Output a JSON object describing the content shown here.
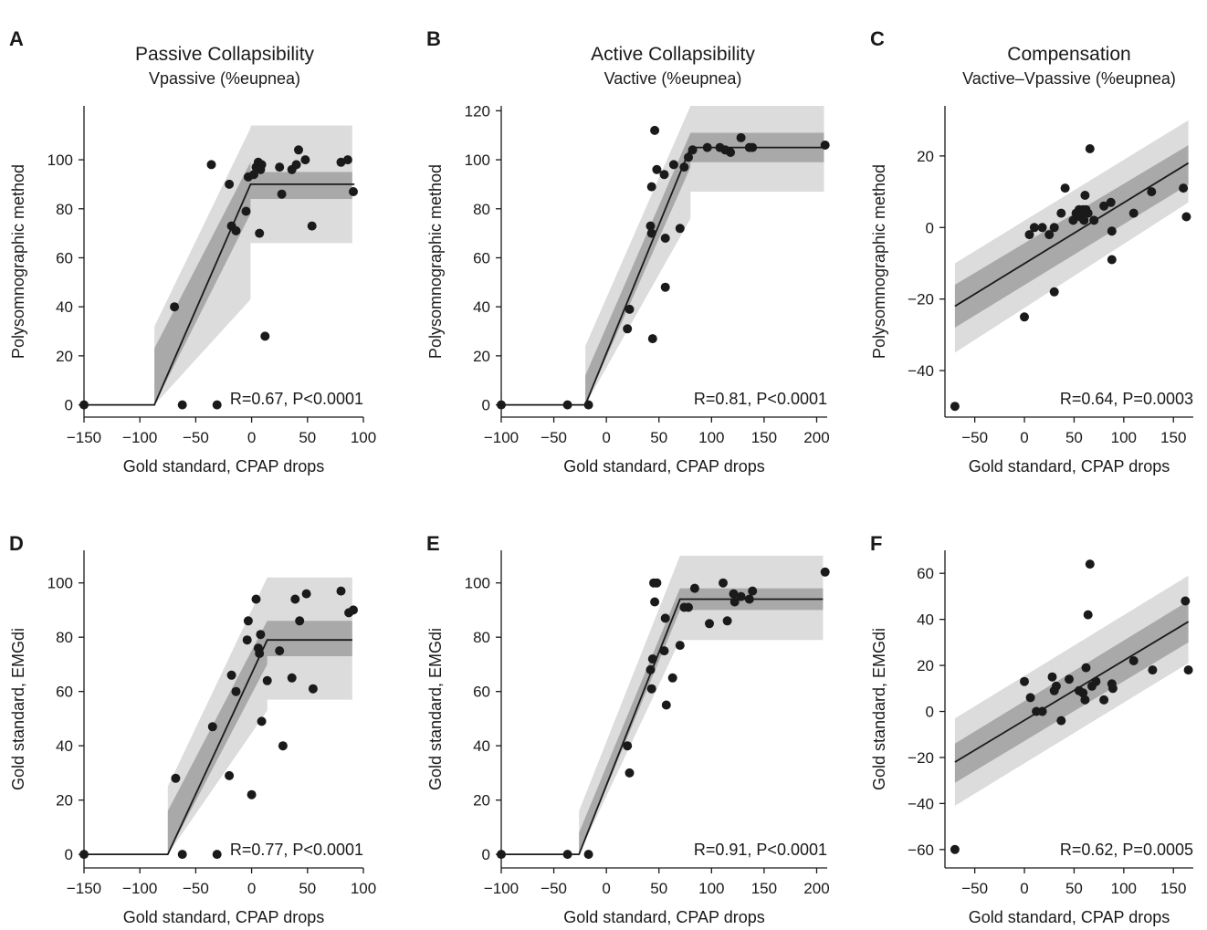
{
  "figure": {
    "columns": [
      {
        "title": "Passive Collapsibility",
        "subtitle": "Vpassive (%eupnea)"
      },
      {
        "title": "Active Collapsibility",
        "subtitle": "Vactive (%eupnea)"
      },
      {
        "title": "Compensation",
        "subtitle": "Vactive–Vpassive (%eupnea)"
      }
    ],
    "colors": {
      "outer_band": "#dcdcdc",
      "inner_band": "#a9a9a9",
      "line": "#1a1a1a",
      "points": "#1a1a1a",
      "axes": "#1a1a1a"
    }
  },
  "chart_data": [
    {
      "panel": "A",
      "type": "scatter",
      "xlabel": "Gold standard, CPAP drops",
      "ylabel": "Polysomnographic method",
      "annotation": "R=0.67, P<0.0001",
      "xlim": [
        -150,
        100
      ],
      "ylim": [
        -5,
        122
      ],
      "xticks": [
        -150,
        -100,
        -50,
        0,
        50,
        100
      ],
      "yticks": [
        0,
        20,
        40,
        60,
        80,
        100
      ],
      "fit": {
        "kind": "piecewise",
        "x": [
          -150,
          -87,
          -1,
          92
        ],
        "y": [
          0,
          0,
          90,
          90
        ]
      },
      "outer_band": {
        "x": [
          -87,
          -1,
          -1,
          90
        ],
        "upper": [
          32,
          113,
          114,
          114
        ],
        "lower": [
          0,
          43,
          66,
          66
        ]
      },
      "inner_band": {
        "x": [
          -87,
          -1,
          -1,
          90
        ],
        "upper": [
          23,
          99,
          95,
          95
        ],
        "lower": [
          0,
          78,
          84,
          84
        ]
      },
      "points": [
        {
          "x": -150,
          "y": 0
        },
        {
          "x": -62,
          "y": 0
        },
        {
          "x": -31,
          "y": 0
        },
        {
          "x": -69,
          "y": 40
        },
        {
          "x": -36,
          "y": 98
        },
        {
          "x": -20,
          "y": 90
        },
        {
          "x": -18,
          "y": 73
        },
        {
          "x": -14,
          "y": 71
        },
        {
          "x": -5,
          "y": 79
        },
        {
          "x": -3,
          "y": 93
        },
        {
          "x": 2,
          "y": 94
        },
        {
          "x": 4,
          "y": 97
        },
        {
          "x": 6,
          "y": 99
        },
        {
          "x": 8,
          "y": 96
        },
        {
          "x": 9,
          "y": 98
        },
        {
          "x": 7,
          "y": 70
        },
        {
          "x": 12,
          "y": 28
        },
        {
          "x": 25,
          "y": 97
        },
        {
          "x": 27,
          "y": 86
        },
        {
          "x": 36,
          "y": 96
        },
        {
          "x": 40,
          "y": 98
        },
        {
          "x": 42,
          "y": 104
        },
        {
          "x": 48,
          "y": 100
        },
        {
          "x": 54,
          "y": 73
        },
        {
          "x": 80,
          "y": 99
        },
        {
          "x": 86,
          "y": 100
        },
        {
          "x": 91,
          "y": 87
        }
      ]
    },
    {
      "panel": "B",
      "type": "scatter",
      "xlabel": "Gold standard, CPAP drops",
      "ylabel": "Polysomnographic method",
      "annotation": "R=0.81, P<0.0001",
      "xlim": [
        -100,
        210
      ],
      "ylim": [
        -5,
        122
      ],
      "xticks": [
        -100,
        -50,
        0,
        50,
        100,
        150,
        200
      ],
      "yticks": [
        0,
        20,
        40,
        60,
        80,
        100,
        120
      ],
      "fit": {
        "kind": "piecewise",
        "x": [
          -100,
          -20,
          80,
          207
        ],
        "y": [
          0,
          0,
          105,
          105
        ]
      },
      "outer_band": {
        "x": [
          -20,
          80,
          80,
          207
        ],
        "upper": [
          24,
          122,
          122,
          122
        ],
        "lower": [
          0,
          76,
          87,
          87
        ]
      },
      "inner_band": {
        "x": [
          -20,
          80,
          80,
          207
        ],
        "upper": [
          12,
          111,
          111,
          111
        ],
        "lower": [
          0,
          97,
          99,
          99
        ]
      },
      "points": [
        {
          "x": -100,
          "y": 0
        },
        {
          "x": -37,
          "y": 0
        },
        {
          "x": -17,
          "y": 0
        },
        {
          "x": 20,
          "y": 31
        },
        {
          "x": 22,
          "y": 39
        },
        {
          "x": 42,
          "y": 73
        },
        {
          "x": 43,
          "y": 70
        },
        {
          "x": 43,
          "y": 89
        },
        {
          "x": 44,
          "y": 27
        },
        {
          "x": 46,
          "y": 112
        },
        {
          "x": 48,
          "y": 96
        },
        {
          "x": 55,
          "y": 94
        },
        {
          "x": 56,
          "y": 68
        },
        {
          "x": 56,
          "y": 48
        },
        {
          "x": 64,
          "y": 98
        },
        {
          "x": 70,
          "y": 72
        },
        {
          "x": 74,
          "y": 97
        },
        {
          "x": 78,
          "y": 101
        },
        {
          "x": 82,
          "y": 104
        },
        {
          "x": 96,
          "y": 105
        },
        {
          "x": 108,
          "y": 105
        },
        {
          "x": 113,
          "y": 104
        },
        {
          "x": 118,
          "y": 103
        },
        {
          "x": 128,
          "y": 109
        },
        {
          "x": 136,
          "y": 105
        },
        {
          "x": 139,
          "y": 105
        },
        {
          "x": 208,
          "y": 106
        }
      ]
    },
    {
      "panel": "C",
      "type": "scatter",
      "xlabel": "Gold standard, CPAP drops",
      "ylabel": "Polysomnographic method",
      "annotation": "R=0.64, P=0.0003",
      "xlim": [
        -80,
        170
      ],
      "ylim": [
        -53,
        34
      ],
      "xticks": [
        -50,
        0,
        50,
        100,
        150
      ],
      "yticks": [
        -40,
        -20,
        0,
        20
      ],
      "fit": {
        "kind": "linear",
        "x": [
          -70,
          165
        ],
        "y": [
          -22,
          18
        ]
      },
      "outer_band": {
        "x": [
          -70,
          165
        ],
        "upper": [
          -10,
          30
        ],
        "lower": [
          -35,
          7
        ]
      },
      "inner_band": {
        "x": [
          -70,
          165
        ],
        "upper": [
          -16,
          23
        ],
        "lower": [
          -28,
          12
        ]
      },
      "points": [
        {
          "x": -70,
          "y": -50
        },
        {
          "x": 0,
          "y": -25
        },
        {
          "x": 5,
          "y": -2
        },
        {
          "x": 10,
          "y": 0
        },
        {
          "x": 18,
          "y": 0
        },
        {
          "x": 25,
          "y": -2
        },
        {
          "x": 30,
          "y": -18
        },
        {
          "x": 30,
          "y": 0
        },
        {
          "x": 37,
          "y": 4
        },
        {
          "x": 41,
          "y": 11
        },
        {
          "x": 49,
          "y": 2
        },
        {
          "x": 52,
          "y": 4
        },
        {
          "x": 55,
          "y": 5
        },
        {
          "x": 56,
          "y": 3
        },
        {
          "x": 59,
          "y": 5
        },
        {
          "x": 60,
          "y": 2
        },
        {
          "x": 61,
          "y": 9
        },
        {
          "x": 62,
          "y": 5
        },
        {
          "x": 64,
          "y": 4
        },
        {
          "x": 66,
          "y": 22
        },
        {
          "x": 70,
          "y": 2
        },
        {
          "x": 80,
          "y": 6
        },
        {
          "x": 87,
          "y": 7
        },
        {
          "x": 88,
          "y": -1
        },
        {
          "x": 88,
          "y": -9
        },
        {
          "x": 110,
          "y": 4
        },
        {
          "x": 128,
          "y": 10
        },
        {
          "x": 160,
          "y": 11
        },
        {
          "x": 163,
          "y": 3
        }
      ]
    },
    {
      "panel": "D",
      "type": "scatter",
      "xlabel": "Gold standard, CPAP drops",
      "ylabel": "Gold standard, EMGdi",
      "annotation": "R=0.77, P<0.0001",
      "xlim": [
        -150,
        100
      ],
      "ylim": [
        -5,
        112
      ],
      "xticks": [
        -150,
        -100,
        -50,
        0,
        50,
        100
      ],
      "yticks": [
        0,
        20,
        40,
        60,
        80,
        100
      ],
      "fit": {
        "kind": "piecewise",
        "x": [
          -150,
          -75,
          14,
          90
        ],
        "y": [
          0,
          0,
          79,
          79
        ]
      },
      "outer_band": {
        "x": [
          -75,
          14,
          14,
          90
        ],
        "upper": [
          25,
          102,
          102,
          102
        ],
        "lower": [
          0,
          53,
          57,
          57
        ]
      },
      "inner_band": {
        "x": [
          -75,
          14,
          14,
          90
        ],
        "upper": [
          16,
          86,
          86,
          86
        ],
        "lower": [
          0,
          70,
          73,
          73
        ]
      },
      "points": [
        {
          "x": -150,
          "y": 0
        },
        {
          "x": -62,
          "y": 0
        },
        {
          "x": -31,
          "y": 0
        },
        {
          "x": -68,
          "y": 28
        },
        {
          "x": -35,
          "y": 47
        },
        {
          "x": -20,
          "y": 29
        },
        {
          "x": -18,
          "y": 66
        },
        {
          "x": -14,
          "y": 60
        },
        {
          "x": -4,
          "y": 79
        },
        {
          "x": -3,
          "y": 86
        },
        {
          "x": 0,
          "y": 22
        },
        {
          "x": 4,
          "y": 94
        },
        {
          "x": 6,
          "y": 76
        },
        {
          "x": 7,
          "y": 74
        },
        {
          "x": 8,
          "y": 81
        },
        {
          "x": 9,
          "y": 49
        },
        {
          "x": 14,
          "y": 64
        },
        {
          "x": 25,
          "y": 75
        },
        {
          "x": 28,
          "y": 40
        },
        {
          "x": 36,
          "y": 65
        },
        {
          "x": 39,
          "y": 94
        },
        {
          "x": 43,
          "y": 86
        },
        {
          "x": 49,
          "y": 96
        },
        {
          "x": 55,
          "y": 61
        },
        {
          "x": 80,
          "y": 97
        },
        {
          "x": 87,
          "y": 89
        },
        {
          "x": 91,
          "y": 90
        }
      ]
    },
    {
      "panel": "E",
      "type": "scatter",
      "xlabel": "Gold standard, CPAP drops",
      "ylabel": "Gold standard, EMGdi",
      "annotation": "R=0.91, P<0.0001",
      "xlim": [
        -100,
        210
      ],
      "ylim": [
        -5,
        112
      ],
      "xticks": [
        -100,
        -50,
        0,
        50,
        100,
        150,
        200
      ],
      "yticks": [
        0,
        20,
        40,
        60,
        80,
        100
      ],
      "fit": {
        "kind": "piecewise",
        "x": [
          -100,
          -26,
          70,
          206
        ],
        "y": [
          0,
          0,
          94,
          94
        ]
      },
      "outer_band": {
        "x": [
          -26,
          70,
          70,
          206
        ],
        "upper": [
          16,
          110,
          110,
          110
        ],
        "lower": [
          0,
          79,
          79,
          79
        ]
      },
      "inner_band": {
        "x": [
          -26,
          70,
          70,
          206
        ],
        "upper": [
          8,
          98,
          98,
          98
        ],
        "lower": [
          0,
          90,
          90,
          90
        ]
      },
      "points": [
        {
          "x": -100,
          "y": 0
        },
        {
          "x": -37,
          "y": 0
        },
        {
          "x": -17,
          "y": 0
        },
        {
          "x": 20,
          "y": 40
        },
        {
          "x": 22,
          "y": 30
        },
        {
          "x": 42,
          "y": 68
        },
        {
          "x": 43,
          "y": 61
        },
        {
          "x": 44,
          "y": 72
        },
        {
          "x": 45,
          "y": 100
        },
        {
          "x": 46,
          "y": 93
        },
        {
          "x": 48,
          "y": 100
        },
        {
          "x": 55,
          "y": 75
        },
        {
          "x": 56,
          "y": 87
        },
        {
          "x": 57,
          "y": 55
        },
        {
          "x": 63,
          "y": 65
        },
        {
          "x": 70,
          "y": 77
        },
        {
          "x": 74,
          "y": 91
        },
        {
          "x": 78,
          "y": 91
        },
        {
          "x": 84,
          "y": 98
        },
        {
          "x": 98,
          "y": 85
        },
        {
          "x": 111,
          "y": 100
        },
        {
          "x": 115,
          "y": 86
        },
        {
          "x": 121,
          "y": 96
        },
        {
          "x": 122,
          "y": 93
        },
        {
          "x": 128,
          "y": 95
        },
        {
          "x": 136,
          "y": 94
        },
        {
          "x": 139,
          "y": 97
        },
        {
          "x": 208,
          "y": 104
        }
      ]
    },
    {
      "panel": "F",
      "type": "scatter",
      "xlabel": "Gold standard, CPAP drops",
      "ylabel": "Gold standard, EMGdi",
      "annotation": "R=0.62, P=0.0005",
      "xlim": [
        -80,
        170
      ],
      "ylim": [
        -68,
        70
      ],
      "xticks": [
        -50,
        0,
        50,
        100,
        150
      ],
      "yticks": [
        -60,
        -40,
        -20,
        0,
        20,
        40,
        60
      ],
      "fit": {
        "kind": "linear",
        "x": [
          -70,
          165
        ],
        "y": [
          -22,
          39
        ]
      },
      "outer_band": {
        "x": [
          -70,
          165
        ],
        "upper": [
          -3,
          59
        ],
        "lower": [
          -41,
          21
        ]
      },
      "inner_band": {
        "x": [
          -70,
          165
        ],
        "upper": [
          -14,
          48
        ],
        "lower": [
          -31,
          30
        ]
      },
      "points": [
        {
          "x": -70,
          "y": -60
        },
        {
          "x": 0,
          "y": 13
        },
        {
          "x": 6,
          "y": 6
        },
        {
          "x": 12,
          "y": 0
        },
        {
          "x": 18,
          "y": 0
        },
        {
          "x": 28,
          "y": 15
        },
        {
          "x": 30,
          "y": 9
        },
        {
          "x": 32,
          "y": 11
        },
        {
          "x": 37,
          "y": -4
        },
        {
          "x": 45,
          "y": 14
        },
        {
          "x": 55,
          "y": 9
        },
        {
          "x": 59,
          "y": 8
        },
        {
          "x": 61,
          "y": 5
        },
        {
          "x": 62,
          "y": 19
        },
        {
          "x": 64,
          "y": 42
        },
        {
          "x": 66,
          "y": 64
        },
        {
          "x": 68,
          "y": 11
        },
        {
          "x": 72,
          "y": 13
        },
        {
          "x": 80,
          "y": 5
        },
        {
          "x": 88,
          "y": 12
        },
        {
          "x": 89,
          "y": 10
        },
        {
          "x": 110,
          "y": 22
        },
        {
          "x": 129,
          "y": 18
        },
        {
          "x": 162,
          "y": 48
        },
        {
          "x": 165,
          "y": 18
        }
      ]
    }
  ]
}
